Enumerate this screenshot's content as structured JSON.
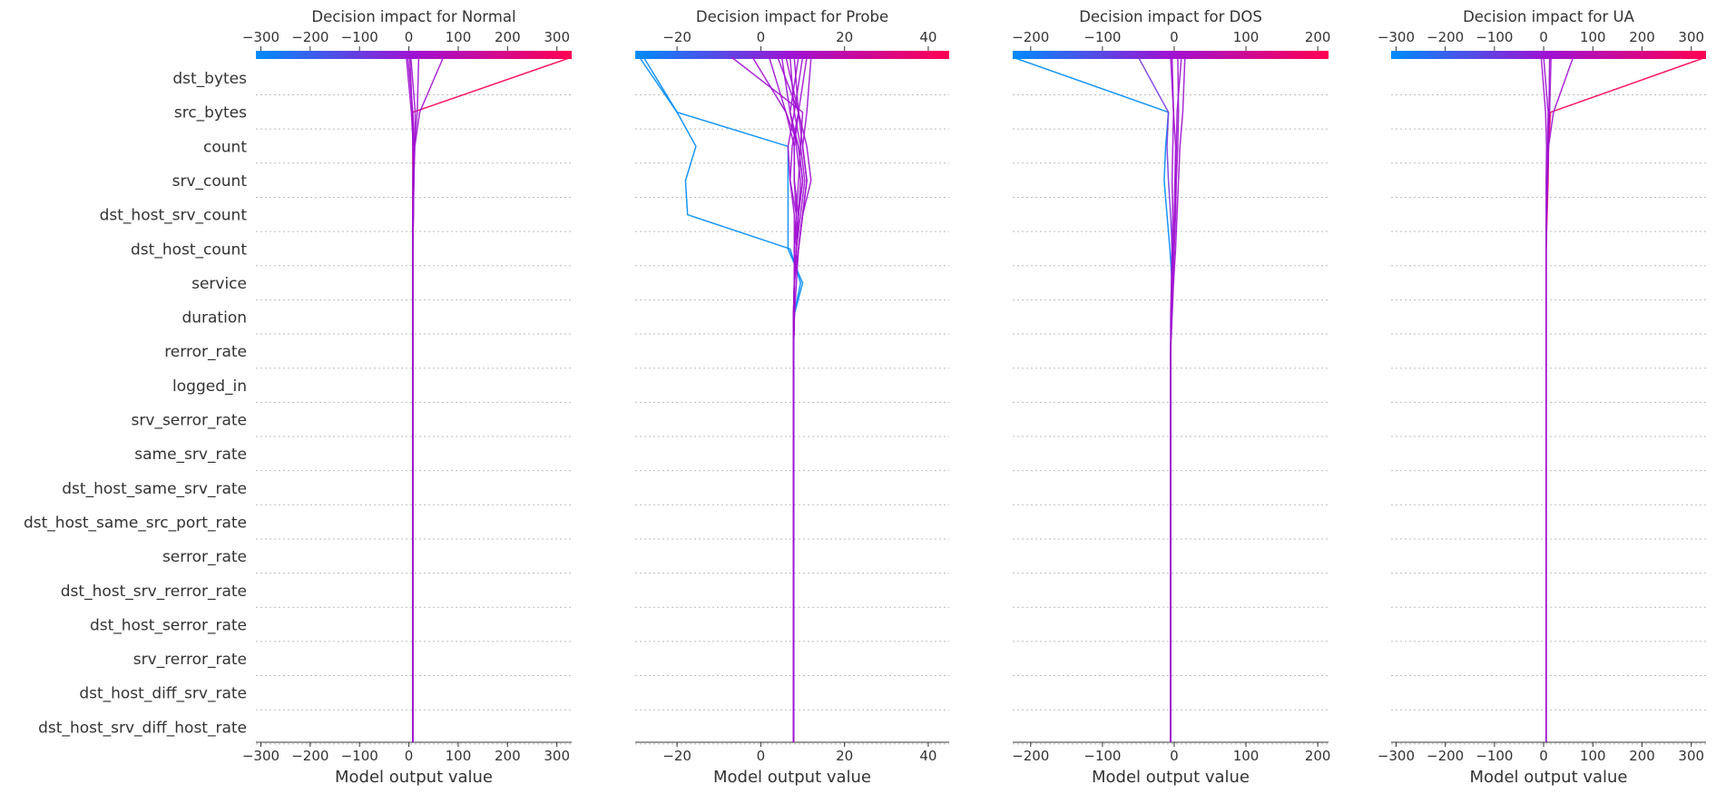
{
  "chart_data": {
    "type": "line",
    "subtype": "shap-decision-plot",
    "features": [
      "dst_bytes",
      "src_bytes",
      "count",
      "srv_count",
      "dst_host_srv_count",
      "dst_host_count",
      "service",
      "duration",
      "rerror_rate",
      "logged_in",
      "srv_serror_rate",
      "same_srv_rate",
      "dst_host_same_srv_rate",
      "dst_host_same_src_port_rate",
      "serror_rate",
      "dst_host_srv_rerror_rate",
      "dst_host_serror_rate",
      "srv_rerror_rate",
      "dst_host_diff_srv_rate",
      "dst_host_srv_diff_host_rate"
    ],
    "colormap": [
      "#008bfb",
      "#a012d2",
      "#ff0052"
    ],
    "grid": "horizontal-dotted",
    "panels": [
      {
        "title": "Decision impact for Normal",
        "xlabel": "Model output value",
        "xlim": [
          -310,
          330
        ],
        "ticks": [
          -300,
          -200,
          -100,
          0,
          100,
          200,
          300
        ],
        "tick_labels": [
          "−300",
          "−200",
          "−100",
          "0",
          "100",
          "200",
          "300"
        ],
        "base": 8,
        "series": [
          {
            "values": [
              8,
              8,
              8,
              8,
              8,
              8,
              8,
              8,
              8,
              8,
              8,
              8,
              8,
              8,
              8,
              8,
              8,
              8,
              8,
              8,
              330
            ],
            "color": "#ff0052"
          },
          {
            "values": [
              8,
              8,
              8,
              8,
              8,
              8,
              8,
              8,
              8,
              8,
              8,
              8,
              8,
              8,
              8,
              8,
              9,
              10,
              12,
              22,
              70
            ],
            "color": "#a012d2"
          },
          {
            "values": [
              8,
              8,
              8,
              8,
              8,
              8,
              8,
              8,
              8,
              8,
              8,
              8,
              8,
              8,
              8,
              8,
              9,
              10,
              11,
              13,
              4
            ],
            "color": "#a012d2"
          },
          {
            "values": [
              8,
              8,
              8,
              8,
              8,
              8,
              8,
              8,
              8,
              8,
              8,
              8,
              8,
              8,
              8,
              8,
              8,
              9,
              10,
              8,
              -2
            ],
            "color": "#a012d2"
          },
          {
            "values": [
              8,
              8,
              8,
              8,
              8,
              8,
              8,
              8,
              8,
              8,
              8,
              8,
              8,
              8,
              8,
              8,
              8,
              8,
              9,
              5,
              -5
            ],
            "color": "#a012d2"
          },
          {
            "values": [
              8,
              8,
              8,
              8,
              8,
              8,
              8,
              8,
              8,
              8,
              8,
              8,
              8,
              8,
              8,
              8,
              9,
              10,
              11,
              17,
              20
            ],
            "color": "#a012d2"
          },
          {
            "values": [
              8,
              8,
              8,
              8,
              8,
              8,
              8,
              8,
              8,
              8,
              8,
              8,
              8,
              8,
              8,
              8,
              8,
              9,
              8,
              7,
              2
            ],
            "color": "#a012d2"
          }
        ]
      },
      {
        "title": "Decision impact for Probe",
        "xlabel": "Model output value",
        "xlim": [
          -30,
          45
        ],
        "ticks": [
          -20,
          0,
          20,
          40
        ],
        "tick_labels": [
          "−20",
          "0",
          "20",
          "40"
        ],
        "base": 7.8,
        "series": [
          {
            "values": [
              7.8,
              7.8,
              7.8,
              7.8,
              7.8,
              7.8,
              7.8,
              7.8,
              7.8,
              7.8,
              7.8,
              7.8,
              7.8,
              7.8,
              9.5,
              7,
              -17.5,
              -18,
              -15.5,
              -20,
              -29
            ],
            "color": "#008bfb"
          },
          {
            "values": [
              7.8,
              7.8,
              7.8,
              7.8,
              7.8,
              7.8,
              7.8,
              7.8,
              7.8,
              7.8,
              7.8,
              7.8,
              7.8,
              7.8,
              10,
              6.5,
              6.5,
              6.5,
              6.5,
              -20,
              -28
            ],
            "color": "#008bfb"
          },
          {
            "values": [
              7.8,
              7.8,
              7.8,
              7.8,
              7.8,
              7.8,
              7.8,
              7.8,
              7.8,
              7.8,
              7.8,
              7.8,
              7.8,
              8,
              8.5,
              9,
              10,
              11,
              10,
              9,
              8
            ],
            "color": "#a012d2"
          },
          {
            "values": [
              7.8,
              7.8,
              7.8,
              7.8,
              7.8,
              7.8,
              7.8,
              7.8,
              7.8,
              7.8,
              7.8,
              7.8,
              7.8,
              8,
              8,
              8.5,
              9,
              10,
              9,
              7,
              5
            ],
            "color": "#a012d2"
          },
          {
            "values": [
              7.8,
              7.8,
              7.8,
              7.8,
              7.8,
              7.8,
              7.8,
              7.8,
              7.8,
              7.8,
              7.8,
              7.8,
              7.8,
              7.8,
              8,
              8,
              8.5,
              9,
              9.5,
              10,
              -7
            ],
            "color": "#a012d2"
          },
          {
            "values": [
              7.8,
              7.8,
              7.8,
              7.8,
              7.8,
              7.8,
              7.8,
              7.8,
              7.8,
              7.8,
              7.8,
              7.8,
              7.8,
              8,
              8,
              8,
              8,
              7,
              6.5,
              8,
              10
            ],
            "color": "#a012d2"
          },
          {
            "values": [
              7.8,
              7.8,
              7.8,
              7.8,
              7.8,
              7.8,
              7.8,
              7.8,
              7.8,
              7.8,
              7.8,
              7.8,
              7.8,
              7.8,
              8,
              8.5,
              9,
              10,
              9,
              6,
              -2
            ],
            "color": "#a012d2"
          },
          {
            "values": [
              7.8,
              7.8,
              7.8,
              7.8,
              7.8,
              7.8,
              7.8,
              7.8,
              7.8,
              7.8,
              7.8,
              7.8,
              7.8,
              8,
              8,
              9,
              10,
              11,
              10,
              11,
              12
            ],
            "color": "#a012d2"
          },
          {
            "values": [
              7.8,
              7.8,
              7.8,
              7.8,
              7.8,
              7.8,
              7.8,
              7.8,
              7.8,
              7.8,
              7.8,
              7.8,
              7.8,
              7.8,
              8,
              8,
              8.5,
              8,
              8,
              6,
              2
            ],
            "color": "#a012d2"
          },
          {
            "values": [
              7.8,
              7.8,
              7.8,
              7.8,
              7.8,
              7.8,
              7.8,
              7.8,
              7.8,
              7.8,
              7.8,
              7.8,
              7.8,
              8,
              8,
              8.5,
              9.5,
              10.5,
              9.5,
              8,
              7
            ],
            "color": "#a012d2"
          },
          {
            "values": [
              7.8,
              7.8,
              7.8,
              7.8,
              7.8,
              7.8,
              7.8,
              7.8,
              7.8,
              7.8,
              7.8,
              7.8,
              7.8,
              7.8,
              8,
              8,
              9,
              8,
              8,
              9,
              6
            ],
            "color": "#a012d2"
          },
          {
            "values": [
              7.8,
              7.8,
              7.8,
              7.8,
              7.8,
              7.8,
              7.8,
              7.8,
              7.8,
              7.8,
              7.8,
              7.8,
              7.8,
              8,
              8,
              9,
              10,
              12,
              11,
              9,
              4
            ],
            "color": "#a012d2"
          },
          {
            "values": [
              7.8,
              7.8,
              7.8,
              7.8,
              7.8,
              7.8,
              7.8,
              7.8,
              7.8,
              7.8,
              7.8,
              7.8,
              7.8,
              7.8,
              8,
              8,
              8.5,
              7,
              7.5,
              9,
              11
            ],
            "color": "#a012d2"
          },
          {
            "values": [
              7.8,
              7.8,
              7.8,
              7.8,
              7.8,
              7.8,
              7.8,
              7.8,
              7.8,
              7.8,
              7.8,
              7.8,
              7.8,
              8,
              8,
              8.5,
              9,
              9.5,
              8.5,
              7,
              9
            ],
            "color": "#a012d2"
          }
        ]
      },
      {
        "title": "Decision impact for DOS",
        "xlabel": "Model output value",
        "xlim": [
          -225,
          215
        ],
        "ticks": [
          -200,
          -100,
          0,
          100,
          200
        ],
        "tick_labels": [
          "−200",
          "−100",
          "0",
          "100",
          "200"
        ],
        "base": -5,
        "series": [
          {
            "values": [
              -5,
              -5,
              -5,
              -5,
              -5,
              -5,
              -5,
              -5,
              -5,
              -5,
              -5,
              -5,
              -5,
              -4,
              -3,
              -6,
              -10,
              -14,
              -12,
              -8,
              -225
            ],
            "color": "#008bfb"
          },
          {
            "values": [
              -5,
              -5,
              -5,
              -5,
              -5,
              -5,
              -5,
              -5,
              -5,
              -5,
              -5,
              -5,
              -5,
              -4,
              -3,
              -3,
              -5,
              -8,
              -10,
              -8,
              -50
            ],
            "color": "#7a3be0"
          },
          {
            "values": [
              -5,
              -5,
              -5,
              -5,
              -5,
              -5,
              -5,
              -5,
              -5,
              -5,
              -5,
              -5,
              -5,
              -3,
              -1,
              2,
              4,
              6,
              8,
              12,
              15
            ],
            "color": "#a012d2"
          },
          {
            "values": [
              -5,
              -5,
              -5,
              -5,
              -5,
              -5,
              -5,
              -5,
              -5,
              -5,
              -5,
              -5,
              -5,
              -4,
              -2,
              0,
              2,
              3,
              5,
              6,
              5
            ],
            "color": "#a012d2"
          },
          {
            "values": [
              -5,
              -5,
              -5,
              -5,
              -5,
              -5,
              -5,
              -5,
              -5,
              -5,
              -5,
              -5,
              -5,
              -4,
              -3,
              -1,
              1,
              2,
              3,
              4,
              10
            ],
            "color": "#a012d2"
          },
          {
            "values": [
              -5,
              -5,
              -5,
              -5,
              -5,
              -5,
              -5,
              -5,
              -5,
              -5,
              -5,
              -5,
              -5,
              -5,
              -4,
              -3,
              -2,
              -3,
              -2,
              -1,
              -3
            ],
            "color": "#a012d2"
          },
          {
            "values": [
              -5,
              -5,
              -5,
              -5,
              -5,
              -5,
              -5,
              -5,
              -5,
              -5,
              -5,
              -5,
              -5,
              -4,
              -3,
              -2,
              0,
              1,
              2,
              -1,
              -5
            ],
            "color": "#a012d2"
          }
        ]
      },
      {
        "title": "Decision impact for UA",
        "xlabel": "Model output value",
        "xlim": [
          -310,
          330
        ],
        "ticks": [
          -300,
          -200,
          -100,
          0,
          100,
          200,
          300
        ],
        "tick_labels": [
          "−300",
          "−200",
          "−100",
          "0",
          "100",
          "200",
          "300"
        ],
        "base": 5,
        "series": [
          {
            "values": [
              5,
              5,
              5,
              5,
              5,
              5,
              5,
              5,
              5,
              5,
              5,
              5,
              5,
              5,
              5,
              5,
              7,
              9,
              10,
              14,
              330
            ],
            "color": "#ff0052"
          },
          {
            "values": [
              5,
              5,
              5,
              5,
              5,
              5,
              5,
              5,
              5,
              5,
              5,
              5,
              5,
              5,
              5,
              5,
              6,
              8,
              10,
              20,
              60
            ],
            "color": "#a012d2"
          },
          {
            "values": [
              5,
              5,
              5,
              5,
              5,
              5,
              5,
              5,
              5,
              5,
              5,
              5,
              5,
              5,
              5,
              5,
              6,
              7,
              8,
              9,
              0
            ],
            "color": "#a012d2"
          },
          {
            "values": [
              5,
              5,
              5,
              5,
              5,
              5,
              5,
              5,
              5,
              5,
              5,
              5,
              5,
              5,
              5,
              5,
              5,
              5,
              6,
              4,
              -5
            ],
            "color": "#a012d2"
          },
          {
            "values": [
              5,
              5,
              5,
              5,
              5,
              5,
              5,
              5,
              5,
              5,
              5,
              5,
              5,
              5,
              5,
              5,
              6,
              7,
              9,
              11,
              12
            ],
            "color": "#a012d2"
          },
          {
            "values": [
              5,
              5,
              5,
              5,
              5,
              5,
              5,
              5,
              5,
              5,
              5,
              5,
              5,
              5,
              5,
              5,
              6,
              8,
              9,
              12,
              15
            ],
            "color": "#a012d2"
          }
        ]
      }
    ]
  }
}
